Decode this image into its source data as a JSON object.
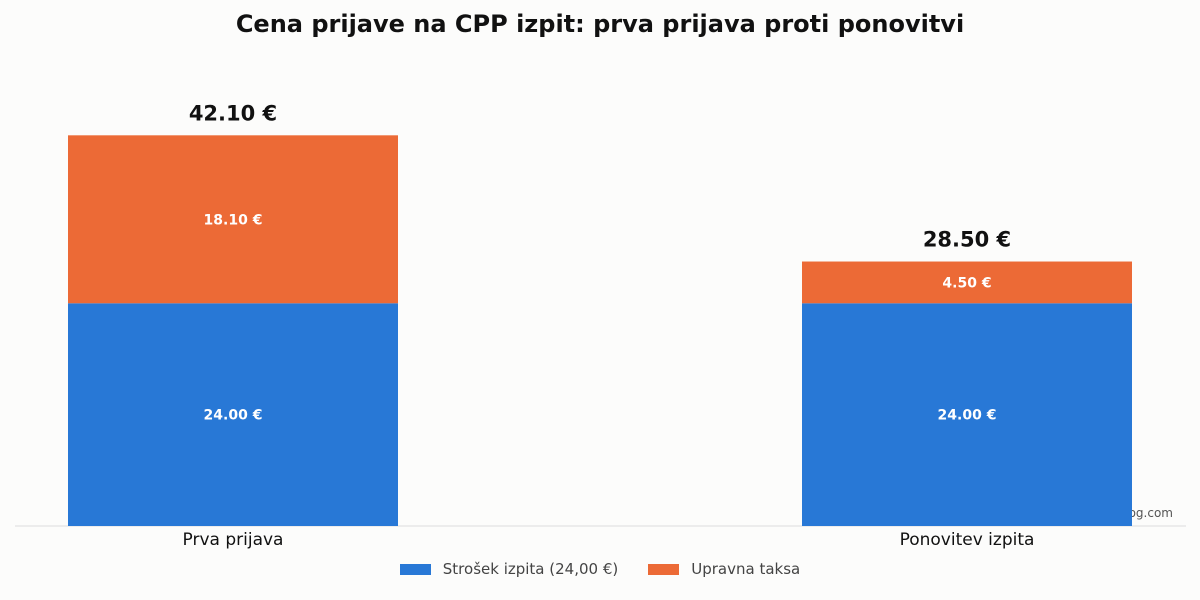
{
  "chart_data": {
    "type": "bar",
    "stacked": true,
    "title": "Cena prijave na CPP izpit: prva prijava proti ponovitvi",
    "categories": [
      "Prva prijava",
      "Ponovitev izpita"
    ],
    "series": [
      {
        "name": "Strošek izpita (24,00 €)",
        "color": "#2878d6",
        "values": [
          24.0,
          24.0
        ],
        "labels": [
          "24.00 €",
          "24.00 €"
        ]
      },
      {
        "name": "Upravna taksa",
        "color": "#ec6a36",
        "values": [
          18.1,
          4.5
        ],
        "labels": [
          "18.10 €",
          "4.50 €"
        ]
      }
    ],
    "totals": [
      42.1,
      28.5
    ],
    "total_labels": [
      "42.10 €",
      "28.50 €"
    ],
    "ylim": [
      0,
      48
    ],
    "grid": false,
    "legend_position": "bottom-center",
    "source": "Vir: Tarifa AVP — netteblog.com"
  }
}
